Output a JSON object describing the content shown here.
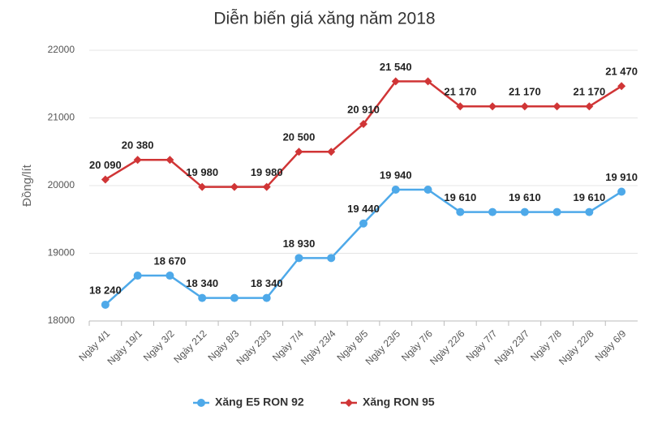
{
  "chart_data": {
    "type": "line",
    "title": "Diễn biến giá xăng năm 2018",
    "y_label": "Đồng/lít",
    "categories": [
      "Ngày 4/1",
      "Ngày 19/1",
      "Ngày 3/2",
      "Ngày 212",
      "Ngày 8/3",
      "Ngày 23/3",
      "Ngày 7/4",
      "Ngày 23/4",
      "Ngày 8/5",
      "Ngày 23/5",
      "Ngày 7/6",
      "Ngày 22/6",
      "Ngày 7/7",
      "Ngày 23/7",
      "Ngày 7/8",
      "Ngày 22/8",
      "Ngày 6/9"
    ],
    "series": [
      {
        "name": "Xăng E5 RON 92",
        "color": "#4ea9e9",
        "marker": "circle",
        "values": [
          18240,
          18670,
          18670,
          18340,
          18340,
          18340,
          18930,
          18930,
          19440,
          19940,
          19940,
          19610,
          19610,
          19610,
          19610,
          19610,
          19910
        ],
        "value_labels": [
          "18 240",
          null,
          "18 670",
          "18 340",
          null,
          "18 340",
          "18 930",
          null,
          "19 440",
          "19 940",
          null,
          "19 610",
          null,
          "19 610",
          null,
          "19 610",
          "19 910"
        ]
      },
      {
        "name": "Xăng RON 95",
        "color": "#d03536",
        "marker": "diamond",
        "values": [
          20090,
          20380,
          20380,
          19980,
          19980,
          19980,
          20500,
          20500,
          20910,
          21540,
          21540,
          21170,
          21170,
          21170,
          21170,
          21170,
          21470
        ],
        "value_labels": [
          "20 090",
          "20 380",
          null,
          "19 980",
          null,
          "19 980",
          "20 500",
          null,
          "20 910",
          "21 540",
          null,
          "21 170",
          null,
          "21 170",
          null,
          "21 170",
          "21 470"
        ]
      }
    ],
    "ylim": [
      18000,
      22000
    ],
    "yticks": [
      18000,
      19000,
      20000,
      21000,
      22000
    ],
    "grid": true,
    "legend": "bottom"
  }
}
